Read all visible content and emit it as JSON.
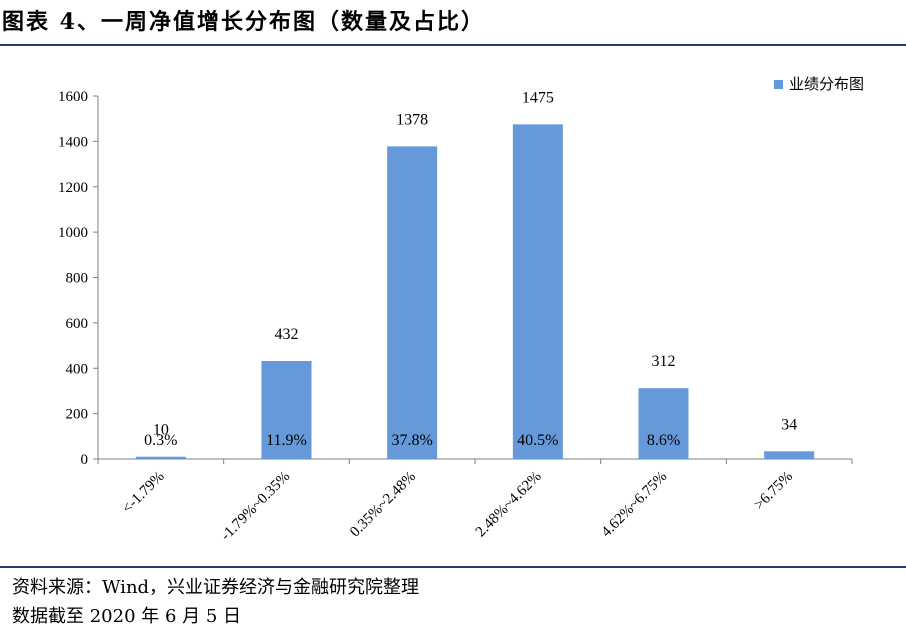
{
  "title": "图表 4、一周净值增长分布图（数量及占比）",
  "source_lines": [
    "资料来源：Wind，兴业证券经济与金融研究院整理",
    "数据截至 2020 年 6 月 5 日"
  ],
  "colors": {
    "bar": "#6699d9",
    "rule": "#1f3f7a",
    "axis": "#808080"
  },
  "chart_data": {
    "type": "bar",
    "categories": [
      "<-1.79%",
      "-1.79%~0.35%",
      "0.35%~2.48%",
      "2.48%~4.62%",
      "4.62%~6.75%",
      ">6.75%"
    ],
    "series": [
      {
        "name": "业绩分布图",
        "values": [
          10,
          432,
          1378,
          1475,
          312,
          34
        ],
        "percent_labels": [
          "0.3%",
          "11.9%",
          "37.8%",
          "40.5%",
          "8.6%",
          ""
        ]
      }
    ],
    "yticks": [
      0,
      200,
      400,
      600,
      800,
      1000,
      1200,
      1400,
      1600
    ],
    "ylim": [
      0,
      1600
    ],
    "grid": false,
    "legend_position": "top-right"
  }
}
